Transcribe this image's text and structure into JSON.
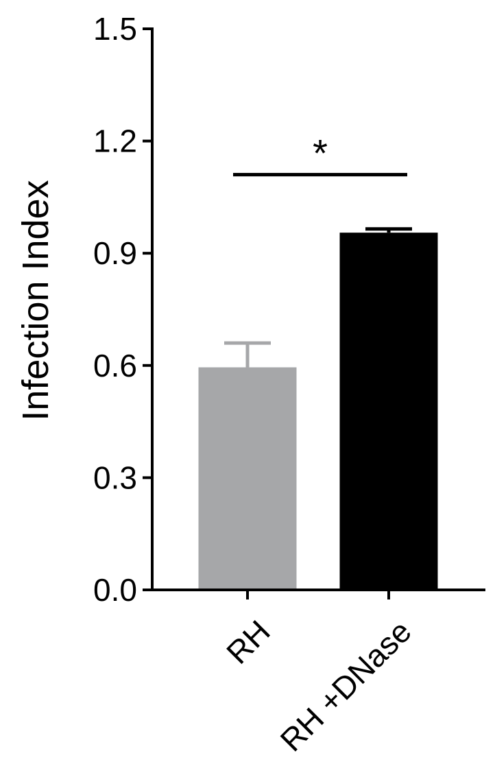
{
  "chart_data": {
    "type": "bar",
    "title": "",
    "xlabel": "",
    "ylabel": "Infection Index",
    "ylim": [
      0,
      1.5
    ],
    "yticks": [
      "0.0",
      "0.3",
      "0.6",
      "0.9",
      "1.2",
      "1.5"
    ],
    "categories": [
      "RH",
      "RH +DNase"
    ],
    "values": [
      0.595,
      0.955
    ],
    "errors": [
      0.065,
      0.01
    ],
    "bar_colors": [
      "#a6a7a9",
      "#000000"
    ],
    "significance": {
      "between": [
        "RH",
        "RH +DNase"
      ],
      "label": "*",
      "y": 1.11
    },
    "grid": false,
    "legend": "none"
  }
}
